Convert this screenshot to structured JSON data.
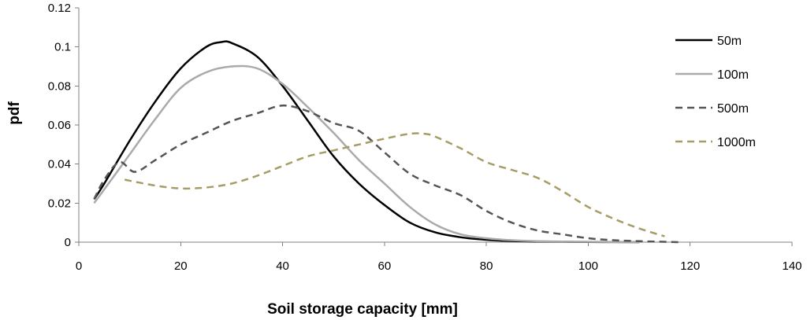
{
  "chart_data": {
    "type": "line",
    "title": "",
    "xlabel": "Soil storage capacity [mm]",
    "ylabel": "pdf",
    "xlim": [
      0,
      140
    ],
    "ylim": [
      0,
      0.12
    ],
    "x_ticks": [
      "0",
      "20",
      "40",
      "60",
      "80",
      "100",
      "120",
      "140"
    ],
    "y_ticks": [
      "0",
      "0.02",
      "0.04",
      "0.06",
      "0.08",
      "0.1",
      "0.12"
    ],
    "grid": false,
    "legend_position": "right",
    "series": [
      {
        "name": "50m",
        "color": "#000000",
        "dash": "solid",
        "x": [
          3,
          5,
          10,
          15,
          20,
          25,
          28,
          30,
          35,
          40,
          45,
          50,
          55,
          60,
          65,
          70,
          75,
          80,
          85,
          90,
          95,
          100,
          110
        ],
        "y": [
          0.022,
          0.03,
          0.052,
          0.072,
          0.089,
          0.1,
          0.1025,
          0.102,
          0.095,
          0.08,
          0.062,
          0.044,
          0.03,
          0.019,
          0.01,
          0.005,
          0.0025,
          0.0012,
          0.0006,
          0.0003,
          0.0002,
          0.0001,
          0.0
        ]
      },
      {
        "name": "100m",
        "color": "#aaaaaa",
        "dash": "solid",
        "x": [
          3,
          5,
          10,
          15,
          20,
          25,
          30,
          35,
          40,
          45,
          50,
          55,
          60,
          65,
          70,
          75,
          80,
          85,
          90,
          95,
          100,
          110
        ],
        "y": [
          0.02,
          0.027,
          0.045,
          0.063,
          0.079,
          0.087,
          0.09,
          0.089,
          0.081,
          0.069,
          0.056,
          0.042,
          0.03,
          0.018,
          0.009,
          0.004,
          0.002,
          0.001,
          0.0005,
          0.0003,
          0.0002,
          0.0
        ]
      },
      {
        "name": "500m",
        "color": "#555555",
        "dash": "dashed",
        "x": [
          3,
          5,
          8,
          11,
          15,
          20,
          25,
          30,
          35,
          40,
          45,
          50,
          55,
          60,
          65,
          70,
          75,
          80,
          85,
          90,
          95,
          100,
          105,
          110,
          118
        ],
        "y": [
          0.022,
          0.032,
          0.041,
          0.036,
          0.042,
          0.05,
          0.056,
          0.062,
          0.066,
          0.07,
          0.067,
          0.061,
          0.057,
          0.046,
          0.035,
          0.029,
          0.024,
          0.016,
          0.01,
          0.006,
          0.004,
          0.002,
          0.001,
          0.0005,
          0.0
        ]
      },
      {
        "name": "1000m",
        "color": "#a69d66",
        "dash": "dashed",
        "x": [
          9,
          15,
          20,
          25,
          30,
          35,
          40,
          45,
          50,
          55,
          60,
          65,
          68,
          70,
          75,
          80,
          85,
          90,
          95,
          100,
          105,
          110,
          115
        ],
        "y": [
          0.032,
          0.029,
          0.0275,
          0.028,
          0.03,
          0.034,
          0.039,
          0.044,
          0.047,
          0.05,
          0.053,
          0.0555,
          0.0555,
          0.054,
          0.048,
          0.041,
          0.037,
          0.033,
          0.026,
          0.018,
          0.012,
          0.007,
          0.003
        ]
      }
    ]
  }
}
